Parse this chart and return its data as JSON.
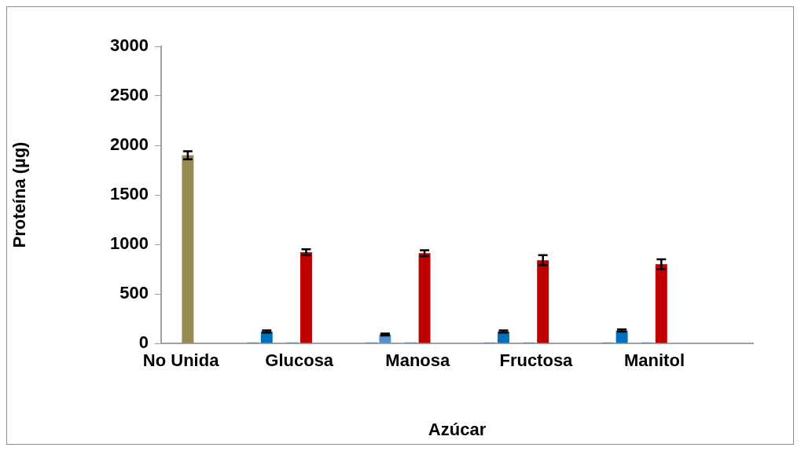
{
  "chart_data": {
    "type": "bar",
    "xlabel": "Azúcar",
    "ylabel": "Proteína (µg)",
    "categories": [
      "No Unida",
      null,
      null,
      "Glucosa",
      null,
      null,
      "Manosa",
      null,
      null,
      "Fructosa",
      null,
      null,
      "Manitol",
      null,
      null
    ],
    "series": [
      {
        "color": "#4f81bd",
        "values": [
          null,
          null,
          10,
          10,
          null,
          10,
          10,
          null,
          10,
          10,
          null,
          10,
          10,
          null,
          null
        ]
      },
      {
        "colors": [
          "#948a54",
          null,
          "#0070c0",
          "#c00000",
          null,
          "#558ed5",
          "#c00000",
          null,
          "#0070c0",
          "#c00000",
          null,
          "#0070c0",
          "#c00000",
          null,
          null
        ],
        "values": [
          1900,
          null,
          120,
          920,
          null,
          90,
          910,
          null,
          120,
          840,
          null,
          130,
          800,
          null,
          null
        ],
        "errors": [
          40,
          null,
          10,
          30,
          null,
          10,
          30,
          null,
          10,
          50,
          null,
          10,
          50,
          null,
          null
        ]
      }
    ],
    "ylim": [
      0,
      3000
    ],
    "yticks": [
      0,
      500,
      1000,
      1500,
      2000,
      2500,
      3000
    ],
    "grid": false,
    "legend": false
  }
}
